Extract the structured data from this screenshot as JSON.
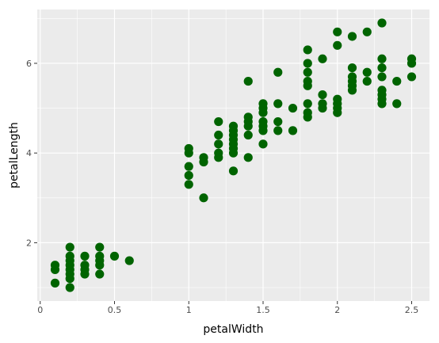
{
  "chart_data": {
    "type": "scatter",
    "title": "",
    "xlabel": "petalWidth",
    "ylabel": "petalLength",
    "xlim": [
      -0.02,
      2.62
    ],
    "ylim": [
      0.7,
      7.2
    ],
    "x_ticks": [
      0,
      0.5,
      1,
      1.5,
      2,
      2.5
    ],
    "x_tick_labels": [
      "0",
      "0.5",
      "1",
      "1.5",
      "2",
      "2.5"
    ],
    "y_ticks": [
      2,
      4,
      6
    ],
    "y_tick_labels": [
      "2",
      "4",
      "6"
    ],
    "grid": true,
    "point_color": "#006400",
    "panel_color": "#ebebeb",
    "grid_color": "#ffffff",
    "points": [
      [
        0.1,
        1.1
      ],
      [
        0.1,
        1.4
      ],
      [
        0.1,
        1.5
      ],
      [
        0.2,
        1.0
      ],
      [
        0.2,
        1.2
      ],
      [
        0.2,
        1.3
      ],
      [
        0.2,
        1.4
      ],
      [
        0.2,
        1.5
      ],
      [
        0.2,
        1.6
      ],
      [
        0.2,
        1.7
      ],
      [
        0.2,
        1.9
      ],
      [
        0.3,
        1.3
      ],
      [
        0.3,
        1.4
      ],
      [
        0.3,
        1.5
      ],
      [
        0.3,
        1.7
      ],
      [
        0.4,
        1.3
      ],
      [
        0.4,
        1.5
      ],
      [
        0.4,
        1.6
      ],
      [
        0.4,
        1.7
      ],
      [
        0.4,
        1.9
      ],
      [
        0.5,
        1.7
      ],
      [
        0.6,
        1.6
      ],
      [
        1.0,
        3.3
      ],
      [
        1.0,
        3.5
      ],
      [
        1.0,
        3.7
      ],
      [
        1.0,
        4.0
      ],
      [
        1.0,
        4.1
      ],
      [
        1.1,
        3.0
      ],
      [
        1.1,
        3.8
      ],
      [
        1.1,
        3.9
      ],
      [
        1.2,
        3.9
      ],
      [
        1.2,
        4.0
      ],
      [
        1.2,
        4.2
      ],
      [
        1.2,
        4.4
      ],
      [
        1.2,
        4.7
      ],
      [
        1.3,
        3.6
      ],
      [
        1.3,
        4.0
      ],
      [
        1.3,
        4.1
      ],
      [
        1.3,
        4.2
      ],
      [
        1.3,
        4.3
      ],
      [
        1.3,
        4.4
      ],
      [
        1.3,
        4.5
      ],
      [
        1.3,
        4.6
      ],
      [
        1.4,
        3.9
      ],
      [
        1.4,
        4.4
      ],
      [
        1.4,
        4.6
      ],
      [
        1.4,
        4.7
      ],
      [
        1.4,
        4.8
      ],
      [
        1.4,
        5.6
      ],
      [
        1.5,
        4.2
      ],
      [
        1.5,
        4.5
      ],
      [
        1.5,
        4.6
      ],
      [
        1.5,
        4.7
      ],
      [
        1.5,
        4.9
      ],
      [
        1.5,
        5.0
      ],
      [
        1.5,
        5.1
      ],
      [
        1.6,
        4.5
      ],
      [
        1.6,
        4.7
      ],
      [
        1.6,
        5.1
      ],
      [
        1.6,
        5.8
      ],
      [
        1.7,
        4.5
      ],
      [
        1.7,
        5.0
      ],
      [
        1.8,
        4.8
      ],
      [
        1.8,
        4.9
      ],
      [
        1.8,
        5.1
      ],
      [
        1.8,
        5.5
      ],
      [
        1.8,
        5.6
      ],
      [
        1.8,
        5.8
      ],
      [
        1.8,
        6.0
      ],
      [
        1.8,
        6.3
      ],
      [
        1.9,
        5.0
      ],
      [
        1.9,
        5.1
      ],
      [
        1.9,
        5.3
      ],
      [
        1.9,
        6.1
      ],
      [
        2.0,
        4.9
      ],
      [
        2.0,
        5.0
      ],
      [
        2.0,
        5.1
      ],
      [
        2.0,
        5.2
      ],
      [
        2.0,
        6.4
      ],
      [
        2.0,
        6.7
      ],
      [
        2.1,
        5.4
      ],
      [
        2.1,
        5.5
      ],
      [
        2.1,
        5.6
      ],
      [
        2.1,
        5.7
      ],
      [
        2.1,
        5.9
      ],
      [
        2.1,
        6.6
      ],
      [
        2.2,
        5.6
      ],
      [
        2.2,
        5.8
      ],
      [
        2.2,
        6.7
      ],
      [
        2.3,
        5.1
      ],
      [
        2.3,
        5.2
      ],
      [
        2.3,
        5.3
      ],
      [
        2.3,
        5.4
      ],
      [
        2.3,
        5.7
      ],
      [
        2.3,
        5.9
      ],
      [
        2.3,
        6.1
      ],
      [
        2.3,
        6.9
      ],
      [
        2.4,
        5.1
      ],
      [
        2.4,
        5.6
      ],
      [
        2.5,
        5.7
      ],
      [
        2.5,
        6.0
      ],
      [
        2.5,
        6.1
      ]
    ]
  }
}
